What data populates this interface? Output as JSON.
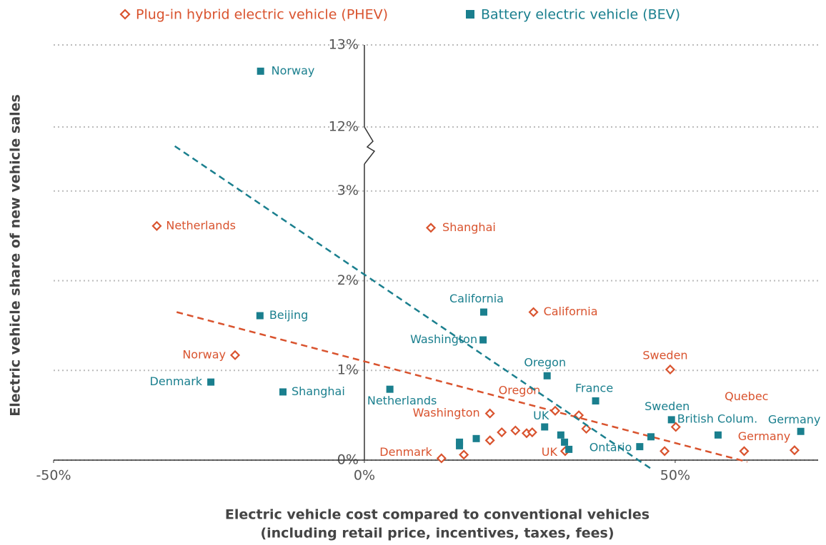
{
  "chart_data": {
    "type": "scatter",
    "ylabel": "Electric vehicle share of new vehicle sales",
    "xlabel": [
      "Electric vehicle cost compared to conventional vehicles",
      "(including retail price, incentives, taxes, fees)"
    ],
    "xlim": [
      -50,
      73
    ],
    "xticks": [
      {
        "value": -50,
        "label": "-50%"
      },
      {
        "value": 0,
        "label": "0%"
      },
      {
        "value": 50,
        "label": "50%"
      }
    ],
    "ylim": [
      0,
      13
    ],
    "y_break": [
      3.3,
      11.8
    ],
    "yticks": [
      {
        "value": 0,
        "label": "0%"
      },
      {
        "value": 1,
        "label": "1%"
      },
      {
        "value": 2,
        "label": "2%"
      },
      {
        "value": 3,
        "label": "3%"
      },
      {
        "value": 12,
        "label": "12%"
      },
      {
        "value": 13,
        "label": "13%"
      }
    ],
    "grid": true,
    "legend": "top",
    "series": [
      {
        "name": "Plug-in hybrid electric vehicle (PHEV)",
        "color": "#d9532e",
        "marker": "diamond",
        "labels": [
          "Netherlands",
          "Shanghai",
          "California",
          "Norway",
          "Sweden",
          "Oregon",
          "Washington",
          "Denmark",
          "UK",
          "Quebec",
          "Germany",
          null,
          null,
          null,
          null,
          null,
          null,
          null,
          null,
          null,
          null
        ],
        "x": [
          -33.4,
          10.7,
          27.2,
          -20.8,
          49.2,
          30.7,
          20.2,
          12.4,
          32.3,
          50.1,
          61.1,
          16.0,
          20.2,
          22.1,
          24.3,
          26.1,
          27.0,
          34.5,
          35.7,
          48.3,
          69.2
        ],
        "values": [
          2.61,
          2.59,
          1.65,
          1.17,
          1.01,
          0.55,
          0.52,
          0.02,
          0.1,
          0.37,
          0.1,
          0.06,
          0.22,
          0.31,
          0.33,
          0.3,
          0.31,
          0.5,
          0.35,
          0.1,
          0.11
        ],
        "trend_x": [
          -30.2,
          61.6
        ],
        "trend_y": [
          1.65,
          -0.02
        ]
      },
      {
        "name": "Battery electric vehicle (BEV)",
        "color": "#1a7f8e",
        "marker": "square",
        "labels": [
          "Norway",
          "Beijing",
          "Denmark",
          "Shanghai",
          "Netherlands",
          "California",
          "Washington",
          "Oregon",
          "France",
          "UK",
          "Sweden",
          "British Colum.",
          "Germany",
          "Ontario",
          null,
          null,
          null,
          null,
          null,
          null,
          null
        ],
        "x": [
          -16.7,
          -16.8,
          -24.7,
          -13.1,
          4.1,
          19.2,
          19.1,
          29.4,
          37.2,
          29.0,
          49.4,
          56.9,
          70.2,
          44.3,
          15.3,
          15.3,
          18.0,
          31.6,
          32.2,
          32.9,
          46.1
        ],
        "values": [
          12.68,
          1.61,
          0.87,
          0.76,
          0.79,
          1.65,
          1.34,
          0.94,
          0.66,
          0.37,
          0.45,
          0.28,
          0.32,
          0.15,
          0.2,
          0.16,
          0.24,
          0.28,
          0.2,
          0.12,
          0.26
        ],
        "trend_x": [
          -30.5,
          46.2
        ],
        "trend_y": [
          3.5,
          -0.1
        ]
      }
    ]
  }
}
